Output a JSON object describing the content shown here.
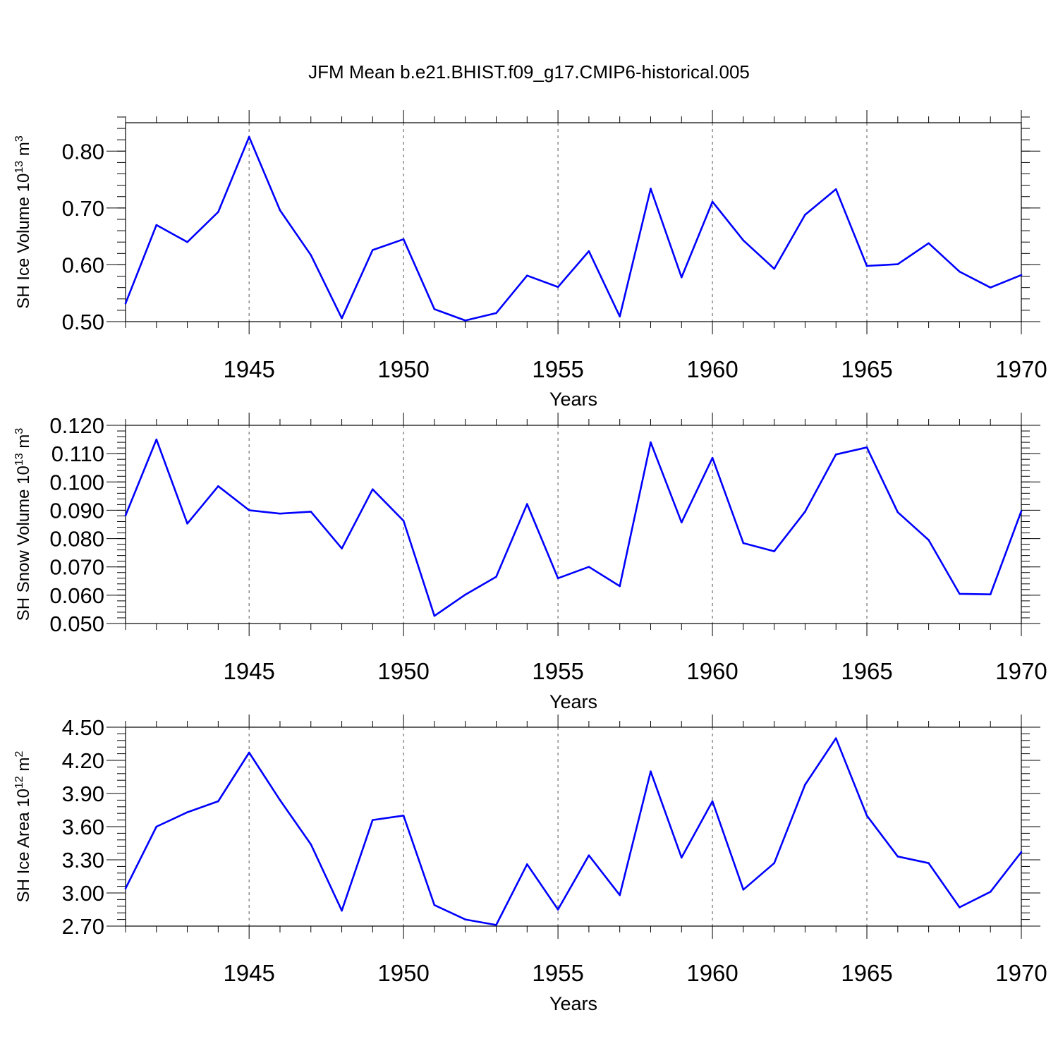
{
  "title": "JFM Mean b.e21.BHIST.f09_g17.CMIP6-historical.005",
  "colors": {
    "series": "#0000ff",
    "axes": "#000000",
    "grid": "#555555"
  },
  "chart_data": [
    {
      "type": "line",
      "title": "JFM Mean b.e21.BHIST.f09_g17.CMIP6-historical.005",
      "xlabel": "Years",
      "ylabel": {
        "text": "SH Ice Volume 10",
        "sup1": "13",
        "unit": " m",
        "sup2": "3"
      },
      "xlim": [
        1941,
        1970
      ],
      "ylim": [
        0.5,
        0.85
      ],
      "yticks": [
        0.5,
        0.6,
        0.7,
        0.8
      ],
      "ytick_labels": [
        "0.50",
        "0.60",
        "0.70",
        "0.80"
      ],
      "yminor_step": 0.02,
      "xticks": [
        1945,
        1950,
        1955,
        1960,
        1965,
        1970
      ],
      "xtick_labels": [
        "1945",
        "1950",
        "1955",
        "1960",
        "1965",
        "1970"
      ],
      "grid": "vertical dashed at major x ticks",
      "x": [
        1941,
        1942,
        1943,
        1944,
        1945,
        1946,
        1947,
        1948,
        1949,
        1950,
        1951,
        1952,
        1953,
        1954,
        1955,
        1956,
        1957,
        1958,
        1959,
        1960,
        1961,
        1962,
        1963,
        1964,
        1965,
        1966,
        1967,
        1968,
        1969,
        1970
      ],
      "values": [
        0.532,
        0.67,
        0.64,
        0.693,
        0.825,
        0.696,
        0.617,
        0.506,
        0.626,
        0.645,
        0.522,
        0.502,
        0.515,
        0.581,
        0.561,
        0.624,
        0.509,
        0.734,
        0.578,
        0.711,
        0.643,
        0.593,
        0.688,
        0.733,
        0.598,
        0.601,
        0.638,
        0.588,
        0.56,
        0.582
      ]
    },
    {
      "type": "line",
      "xlabel": "Years",
      "ylabel": {
        "text": "SH Snow Volume 10",
        "sup1": "13",
        "unit": " m",
        "sup2": "3"
      },
      "xlim": [
        1941,
        1970
      ],
      "ylim": [
        0.05,
        0.12
      ],
      "yticks": [
        0.05,
        0.06,
        0.07,
        0.08,
        0.09,
        0.1,
        0.11,
        0.12
      ],
      "ytick_labels": [
        "0.050",
        "0.060",
        "0.070",
        "0.080",
        "0.090",
        "0.100",
        "0.110",
        "0.120"
      ],
      "yminor_step": 0.002,
      "xticks": [
        1945,
        1950,
        1955,
        1960,
        1965,
        1970
      ],
      "xtick_labels": [
        "1945",
        "1950",
        "1955",
        "1960",
        "1965",
        "1970"
      ],
      "grid": "vertical dashed at major x ticks",
      "x": [
        1941,
        1942,
        1943,
        1944,
        1945,
        1946,
        1947,
        1948,
        1949,
        1950,
        1951,
        1952,
        1953,
        1954,
        1955,
        1956,
        1957,
        1958,
        1959,
        1960,
        1961,
        1962,
        1963,
        1964,
        1965,
        1966,
        1967,
        1968,
        1969,
        1970
      ],
      "values": [
        0.0882,
        0.115,
        0.0853,
        0.0985,
        0.09,
        0.0888,
        0.0895,
        0.0765,
        0.0974,
        0.0863,
        0.0527,
        0.0602,
        0.0665,
        0.0922,
        0.066,
        0.07,
        0.0632,
        0.114,
        0.0857,
        0.1085,
        0.0784,
        0.0755,
        0.0895,
        0.1097,
        0.1122,
        0.0893,
        0.0795,
        0.0605,
        0.0603,
        0.0897
      ]
    },
    {
      "type": "line",
      "xlabel": "Years",
      "ylabel": {
        "text": "SH Ice Area 10",
        "sup1": "12",
        "unit": " m",
        "sup2": "2"
      },
      "xlim": [
        1941,
        1970
      ],
      "ylim": [
        2.7,
        4.5
      ],
      "yticks": [
        2.7,
        3.0,
        3.3,
        3.6,
        3.9,
        4.2,
        4.5
      ],
      "ytick_labels": [
        "2.70",
        "3.00",
        "3.30",
        "3.60",
        "3.90",
        "4.20",
        "4.50"
      ],
      "yminor_step": 0.06,
      "xticks": [
        1945,
        1950,
        1955,
        1960,
        1965,
        1970
      ],
      "xtick_labels": [
        "1945",
        "1950",
        "1955",
        "1960",
        "1965",
        "1970"
      ],
      "grid": "vertical dashed at major x ticks",
      "x": [
        1941,
        1942,
        1943,
        1944,
        1945,
        1946,
        1947,
        1948,
        1949,
        1950,
        1951,
        1952,
        1953,
        1954,
        1955,
        1956,
        1957,
        1958,
        1959,
        1960,
        1961,
        1962,
        1963,
        1964,
        1965,
        1966,
        1967,
        1968,
        1969,
        1970
      ],
      "values": [
        3.04,
        3.6,
        3.73,
        3.83,
        4.27,
        3.84,
        3.44,
        2.84,
        3.66,
        3.7,
        2.89,
        2.76,
        2.71,
        3.26,
        2.85,
        3.34,
        2.98,
        4.1,
        3.32,
        3.83,
        3.03,
        3.27,
        3.98,
        4.4,
        3.7,
        3.33,
        3.27,
        2.87,
        3.01,
        3.37
      ]
    }
  ]
}
